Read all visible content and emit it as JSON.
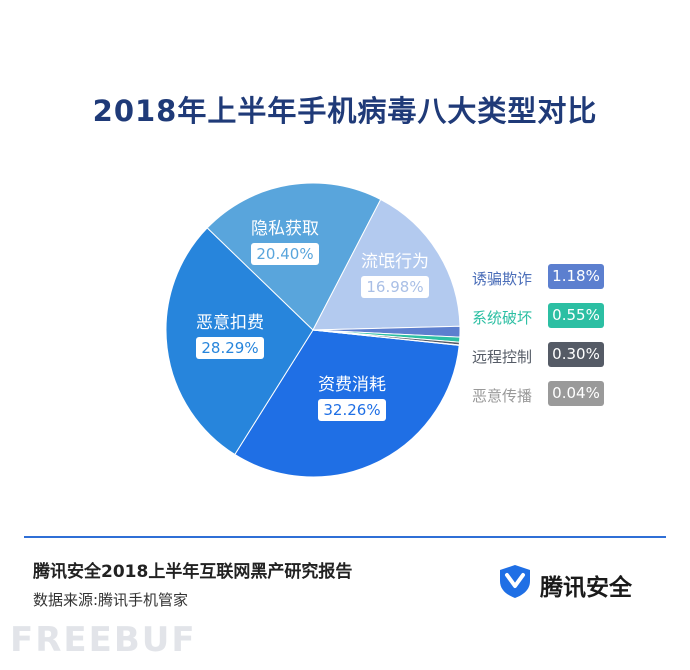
{
  "chart_data": {
    "type": "pie",
    "title": "2018年上半年手机病毒八大类型对比",
    "slices": [
      {
        "name": "资费消耗",
        "value": 32.26,
        "label": "32.26%",
        "color": "#1f6fe5",
        "label_color": "#1f6fe5"
      },
      {
        "name": "恶意扣费",
        "value": 28.29,
        "label": "28.29%",
        "color": "#2785dc",
        "label_color": "#2785dc"
      },
      {
        "name": "隐私获取",
        "value": 20.4,
        "label": "20.40%",
        "color": "#59a5dc",
        "label_color": "#59a5dc"
      },
      {
        "name": "流氓行为",
        "value": 16.98,
        "label": "16.98%",
        "color": "#b3caef",
        "label_color": "#a9bfe6"
      },
      {
        "name": "诱骗欺诈",
        "value": 1.18,
        "label": "1.18%",
        "color": "#5c7fcf",
        "label_color": "#5c7fcf"
      },
      {
        "name": "系统破坏",
        "value": 0.55,
        "label": "0.55%",
        "color": "#2cbfa3",
        "label_color": "#2cbfa3"
      },
      {
        "name": "远程控制",
        "value": 0.3,
        "label": "0.30%",
        "color": "#555b66",
        "label_color": "#555b66"
      },
      {
        "name": "恶意传播",
        "value": 0.04,
        "label": "0.04%",
        "color": "#9a9a9a",
        "label_color": "#9a9a9a"
      }
    ],
    "legend": [
      {
        "name": "诱骗欺诈",
        "label": "1.18%",
        "name_color": "#4a6db8",
        "badge_color": "#5c7fcf"
      },
      {
        "name": "系统破坏",
        "label": "0.55%",
        "name_color": "#2cbfa3",
        "badge_color": "#2cbfa3"
      },
      {
        "name": "远程控制",
        "label": "0.30%",
        "name_color": "#555b66",
        "badge_color": "#555b66"
      },
      {
        "name": "恶意传播",
        "label": "0.04%",
        "name_color": "#999999",
        "badge_color": "#9a9a9a"
      }
    ],
    "legend_position": "right"
  },
  "footer": {
    "report_title": "腾讯安全2018上半年互联网黑产研究报告",
    "source": "数据来源:腾讯手机管家",
    "brand": "腾讯安全"
  },
  "watermark": "FREEBUF"
}
